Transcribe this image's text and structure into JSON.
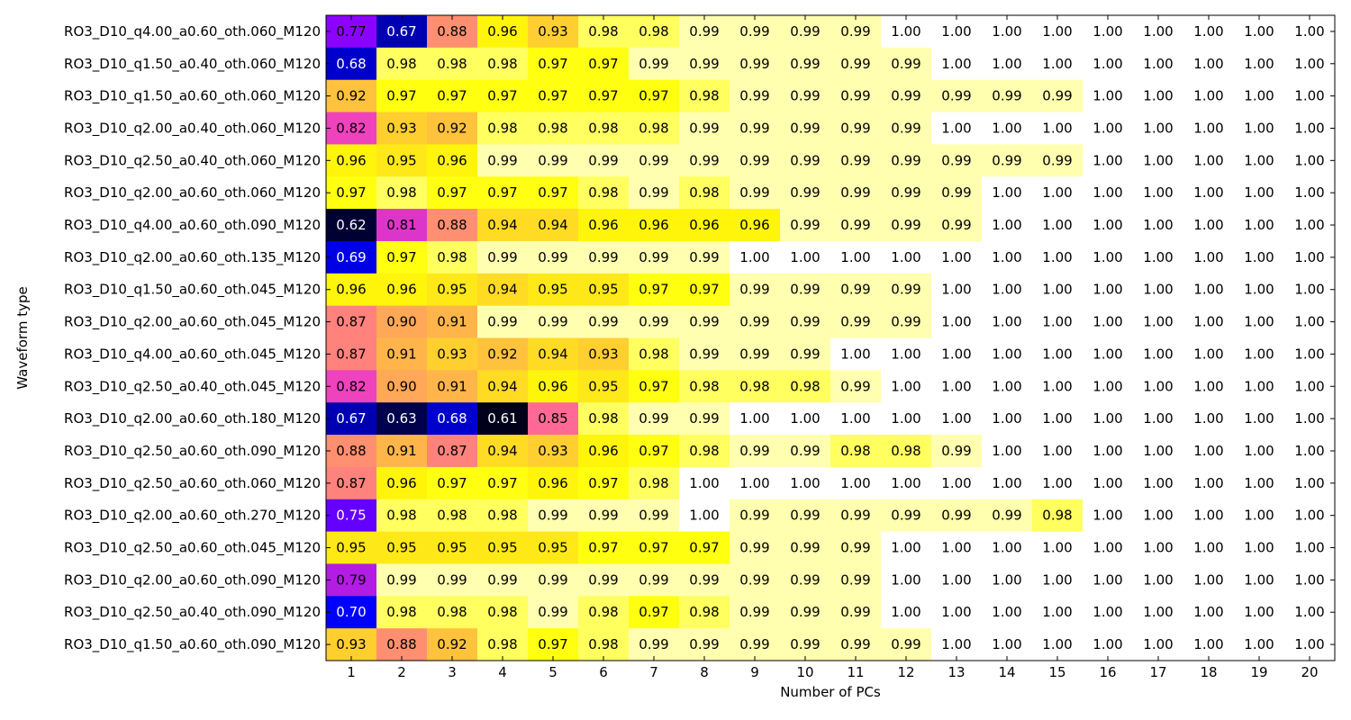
{
  "chart_data": {
    "type": "heatmap",
    "xlabel": "Number of PCs",
    "ylabel": "Waveform type",
    "x": [
      "1",
      "2",
      "3",
      "4",
      "5",
      "6",
      "7",
      "8",
      "9",
      "10",
      "11",
      "12",
      "13",
      "14",
      "15",
      "16",
      "17",
      "18",
      "19",
      "20"
    ],
    "y": [
      "RO3_D10_q4.00_a0.60_oth.060_M120",
      "RO3_D10_q1.50_a0.40_oth.060_M120",
      "RO3_D10_q1.50_a0.60_oth.060_M120",
      "RO3_D10_q2.00_a0.40_oth.060_M120",
      "RO3_D10_q2.50_a0.40_oth.060_M120",
      "RO3_D10_q2.00_a0.60_oth.060_M120",
      "RO3_D10_q4.00_a0.60_oth.090_M120",
      "RO3_D10_q2.00_a0.60_oth.135_M120",
      "RO3_D10_q1.50_a0.60_oth.045_M120",
      "RO3_D10_q2.00_a0.60_oth.045_M120",
      "RO3_D10_q4.00_a0.60_oth.045_M120",
      "RO3_D10_q2.50_a0.40_oth.045_M120",
      "RO3_D10_q2.00_a0.60_oth.180_M120",
      "RO3_D10_q2.50_a0.60_oth.090_M120",
      "RO3_D10_q2.50_a0.60_oth.060_M120",
      "RO3_D10_q2.00_a0.60_oth.270_M120",
      "RO3_D10_q2.50_a0.60_oth.045_M120",
      "RO3_D10_q2.00_a0.60_oth.090_M120",
      "RO3_D10_q2.50_a0.40_oth.090_M120",
      "RO3_D10_q1.50_a0.60_oth.090_M120"
    ],
    "values": [
      [
        0.77,
        0.67,
        0.88,
        0.96,
        0.93,
        0.98,
        0.98,
        0.99,
        0.99,
        0.99,
        0.99,
        1.0,
        1.0,
        1.0,
        1.0,
        1.0,
        1.0,
        1.0,
        1.0,
        1.0
      ],
      [
        0.68,
        0.98,
        0.98,
        0.98,
        0.97,
        0.97,
        0.99,
        0.99,
        0.99,
        0.99,
        0.99,
        0.99,
        1.0,
        1.0,
        1.0,
        1.0,
        1.0,
        1.0,
        1.0,
        1.0
      ],
      [
        0.92,
        0.97,
        0.97,
        0.97,
        0.97,
        0.97,
        0.97,
        0.98,
        0.99,
        0.99,
        0.99,
        0.99,
        0.99,
        0.99,
        0.99,
        1.0,
        1.0,
        1.0,
        1.0,
        1.0
      ],
      [
        0.82,
        0.93,
        0.92,
        0.98,
        0.98,
        0.98,
        0.98,
        0.99,
        0.99,
        0.99,
        0.99,
        0.99,
        1.0,
        1.0,
        1.0,
        1.0,
        1.0,
        1.0,
        1.0,
        1.0
      ],
      [
        0.96,
        0.95,
        0.96,
        0.99,
        0.99,
        0.99,
        0.99,
        0.99,
        0.99,
        0.99,
        0.99,
        0.99,
        0.99,
        0.99,
        0.99,
        1.0,
        1.0,
        1.0,
        1.0,
        1.0
      ],
      [
        0.97,
        0.98,
        0.97,
        0.97,
        0.97,
        0.98,
        0.99,
        0.98,
        0.99,
        0.99,
        0.99,
        0.99,
        0.99,
        1.0,
        1.0,
        1.0,
        1.0,
        1.0,
        1.0,
        1.0
      ],
      [
        0.62,
        0.81,
        0.88,
        0.94,
        0.94,
        0.96,
        0.96,
        0.96,
        0.96,
        0.99,
        0.99,
        0.99,
        0.99,
        1.0,
        1.0,
        1.0,
        1.0,
        1.0,
        1.0,
        1.0
      ],
      [
        0.69,
        0.97,
        0.98,
        0.99,
        0.99,
        0.99,
        0.99,
        0.99,
        1.0,
        1.0,
        1.0,
        1.0,
        1.0,
        1.0,
        1.0,
        1.0,
        1.0,
        1.0,
        1.0,
        1.0
      ],
      [
        0.96,
        0.96,
        0.95,
        0.94,
        0.95,
        0.95,
        0.97,
        0.97,
        0.99,
        0.99,
        0.99,
        0.99,
        1.0,
        1.0,
        1.0,
        1.0,
        1.0,
        1.0,
        1.0,
        1.0
      ],
      [
        0.87,
        0.9,
        0.91,
        0.99,
        0.99,
        0.99,
        0.99,
        0.99,
        0.99,
        0.99,
        0.99,
        0.99,
        1.0,
        1.0,
        1.0,
        1.0,
        1.0,
        1.0,
        1.0,
        1.0
      ],
      [
        0.87,
        0.91,
        0.93,
        0.92,
        0.94,
        0.93,
        0.98,
        0.99,
        0.99,
        0.99,
        1.0,
        1.0,
        1.0,
        1.0,
        1.0,
        1.0,
        1.0,
        1.0,
        1.0,
        1.0
      ],
      [
        0.82,
        0.9,
        0.91,
        0.94,
        0.96,
        0.95,
        0.97,
        0.98,
        0.98,
        0.98,
        0.99,
        1.0,
        1.0,
        1.0,
        1.0,
        1.0,
        1.0,
        1.0,
        1.0,
        1.0
      ],
      [
        0.67,
        0.63,
        0.68,
        0.61,
        0.85,
        0.98,
        0.99,
        0.99,
        1.0,
        1.0,
        1.0,
        1.0,
        1.0,
        1.0,
        1.0,
        1.0,
        1.0,
        1.0,
        1.0,
        1.0
      ],
      [
        0.88,
        0.91,
        0.87,
        0.94,
        0.93,
        0.96,
        0.97,
        0.98,
        0.99,
        0.99,
        0.98,
        0.98,
        0.99,
        1.0,
        1.0,
        1.0,
        1.0,
        1.0,
        1.0,
        1.0
      ],
      [
        0.87,
        0.96,
        0.97,
        0.97,
        0.96,
        0.97,
        0.98,
        1.0,
        1.0,
        1.0,
        1.0,
        1.0,
        1.0,
        1.0,
        1.0,
        1.0,
        1.0,
        1.0,
        1.0,
        1.0
      ],
      [
        0.75,
        0.98,
        0.98,
        0.98,
        0.99,
        0.99,
        0.99,
        1.0,
        0.99,
        0.99,
        0.99,
        0.99,
        0.99,
        0.99,
        0.98,
        1.0,
        1.0,
        1.0,
        1.0,
        1.0
      ],
      [
        0.95,
        0.95,
        0.95,
        0.95,
        0.95,
        0.97,
        0.97,
        0.97,
        0.99,
        0.99,
        0.99,
        1.0,
        1.0,
        1.0,
        1.0,
        1.0,
        1.0,
        1.0,
        1.0,
        1.0
      ],
      [
        0.79,
        0.99,
        0.99,
        0.99,
        0.99,
        0.99,
        0.99,
        0.99,
        0.99,
        0.99,
        0.99,
        1.0,
        1.0,
        1.0,
        1.0,
        1.0,
        1.0,
        1.0,
        1.0,
        1.0
      ],
      [
        0.7,
        0.98,
        0.98,
        0.98,
        0.99,
        0.98,
        0.97,
        0.98,
        0.99,
        0.99,
        0.99,
        1.0,
        1.0,
        1.0,
        1.0,
        1.0,
        1.0,
        1.0,
        1.0,
        1.0
      ],
      [
        0.93,
        0.88,
        0.92,
        0.98,
        0.97,
        0.98,
        0.99,
        0.99,
        0.99,
        0.99,
        0.99,
        0.99,
        1.0,
        1.0,
        1.0,
        1.0,
        1.0,
        1.0,
        1.0,
        1.0
      ]
    ],
    "colormap": "gnuplot2",
    "colormap_range": [
      0.6,
      1.0
    ],
    "grid": false,
    "legend": "none"
  }
}
